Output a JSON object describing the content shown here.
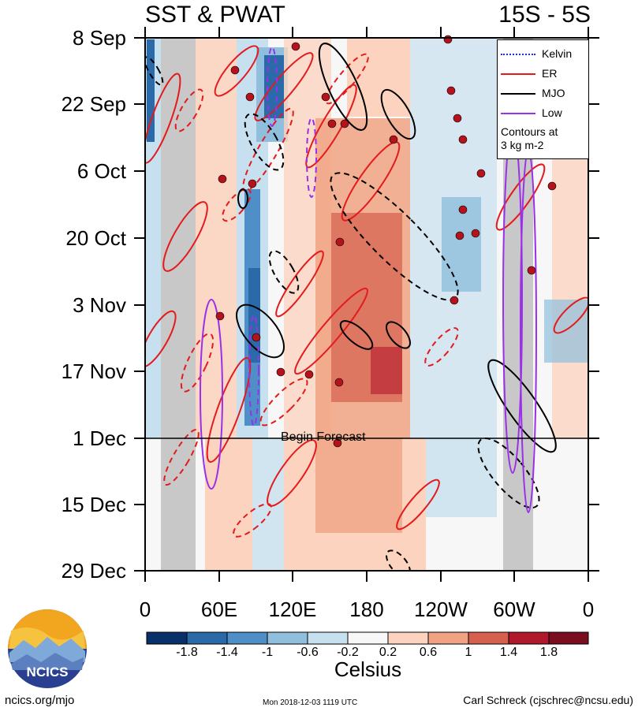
{
  "header": {
    "title_left": "SST & PWAT",
    "title_right": "15S - 5S"
  },
  "chart_data": {
    "type": "heatmap",
    "title": "SST & PWAT",
    "region": "15S - 5S",
    "y_ticks": [
      "8 Sep",
      "22 Sep",
      "6 Oct",
      "20 Oct",
      "3 Nov",
      "17 Nov",
      "1 Dec",
      "15 Dec",
      "29 Dec"
    ],
    "x_ticks": [
      "0",
      "60E",
      "120E",
      "180",
      "120W",
      "60W",
      "0"
    ],
    "forecast_start": "1 Dec",
    "forecast_label": "Begin Forecast",
    "colorbar": {
      "label": "Celsius",
      "ticks": [
        "-1.8",
        "-1.4",
        "-1",
        "-0.6",
        "-0.2",
        "0.2",
        "0.6",
        "1",
        "1.4",
        "1.8"
      ],
      "colors": [
        "#08306b",
        "#2a6aa8",
        "#4f8fc7",
        "#8fbfdc",
        "#c7e0ef",
        "#f7f7f7",
        "#fbd3bf",
        "#f0a283",
        "#d6604d",
        "#b2182b",
        "#7a0e1e"
      ]
    },
    "legend": {
      "entries": [
        {
          "label": "Kelvin",
          "color": "#1f2fe0"
        },
        {
          "label": "ER",
          "color": "#e41a1c"
        },
        {
          "label": "MJO",
          "color": "#000000"
        },
        {
          "label": "Low",
          "color": "#9b30e8"
        }
      ],
      "note": [
        "Contours at",
        "3 kg m-2"
      ]
    }
  },
  "footer": {
    "left": "ncics.org/mjo",
    "middle": "Mon 2018-12-03 1119 UTC",
    "right": "Carl Schreck (cjschrec@ncsu.edu)",
    "logo_text": "NCICS"
  }
}
